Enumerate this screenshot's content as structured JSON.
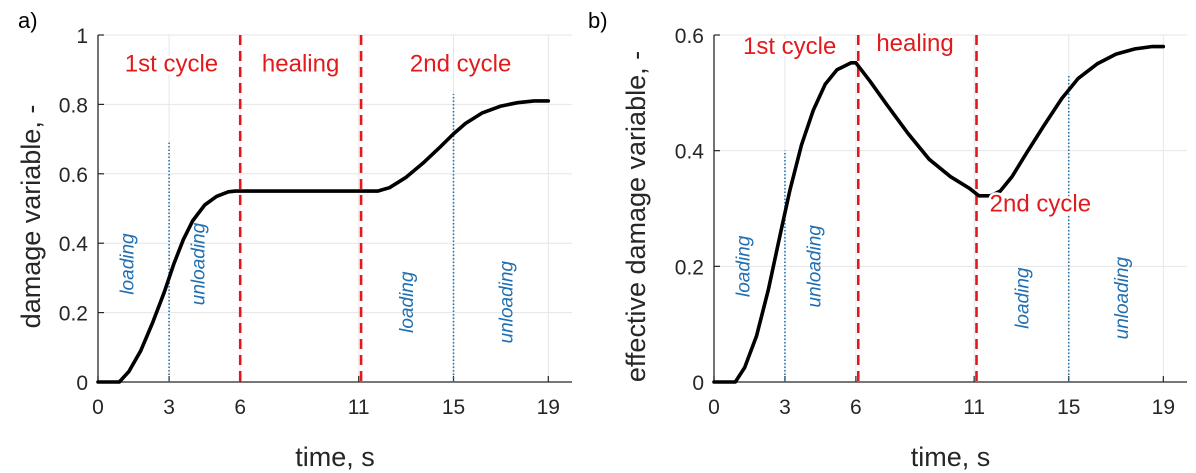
{
  "colors": {
    "curve": "#000000",
    "phase_line": "#e31a1c",
    "phase_text": "#e31a1c",
    "marker_line": "#1f77b4",
    "annotation_text": "#1f6fb2",
    "axis": "#262626",
    "grid": "#e6e6e6"
  },
  "chart_data": [
    {
      "type": "line",
      "panel_label": "a)",
      "xlabel": "time, s",
      "ylabel": "damage variable, -",
      "xlim": [
        0,
        20
      ],
      "ylim": [
        0,
        1
      ],
      "xticks": [
        0,
        3,
        6,
        11,
        15,
        19
      ],
      "yticks": [
        0,
        0.2,
        0.4,
        0.6,
        0.8,
        1
      ],
      "ytick_labels": [
        "0",
        "0.2",
        "0.4",
        "0.6",
        "0.8",
        "1"
      ],
      "grid": true,
      "series": [
        {
          "x": [
            0,
            0.9,
            1.3,
            1.8,
            2.3,
            2.8,
            3.2,
            3.6,
            4.0,
            4.5,
            5.0,
            5.5,
            5.8,
            6.5,
            8,
            10,
            11,
            11.8,
            12.3,
            13,
            13.7,
            14.4,
            15,
            15.5,
            16.2,
            17,
            17.7,
            18.4,
            19
          ],
          "y": [
            0,
            0,
            0.03,
            0.09,
            0.17,
            0.26,
            0.34,
            0.41,
            0.465,
            0.51,
            0.535,
            0.548,
            0.55,
            0.55,
            0.55,
            0.55,
            0.55,
            0.55,
            0.56,
            0.59,
            0.63,
            0.675,
            0.715,
            0.745,
            0.775,
            0.795,
            0.805,
            0.81,
            0.81
          ]
        }
      ],
      "phase_lines": [
        6,
        11.1
      ],
      "marker_lines": [
        {
          "x": 3,
          "y_top": 0.69
        },
        {
          "x": 15,
          "y_top": 0.83
        }
      ],
      "phase_labels": [
        {
          "text": "1st cycle",
          "x": 3.1,
          "y": 0.895
        },
        {
          "text": "healing",
          "x": 8.55,
          "y": 0.895
        },
        {
          "text": "2nd cycle",
          "x": 15.3,
          "y": 0.895
        }
      ],
      "annotations": [
        {
          "text": "loading",
          "x": 1.5,
          "y": 0.34
        },
        {
          "text": "unloading",
          "x": 4.5,
          "y": 0.34
        },
        {
          "text": "loading",
          "x": 13.3,
          "y": 0.23
        },
        {
          "text": "unloading",
          "x": 17.5,
          "y": 0.23
        }
      ]
    },
    {
      "type": "line",
      "panel_label": "b)",
      "xlabel": "time, s",
      "ylabel": "effective damage variable, -",
      "xlim": [
        0,
        20
      ],
      "ylim": [
        0,
        0.6
      ],
      "xticks": [
        0,
        3,
        6,
        11,
        15,
        19
      ],
      "yticks": [
        0,
        0.2,
        0.4,
        0.6
      ],
      "ytick_labels": [
        "0",
        "0.2",
        "0.4",
        "0.6"
      ],
      "grid": true,
      "series": [
        {
          "x": [
            0,
            0.9,
            1.3,
            1.8,
            2.3,
            2.8,
            3.2,
            3.7,
            4.2,
            4.7,
            5.2,
            5.8,
            6.0,
            6.6,
            7.3,
            8.2,
            9.1,
            10.0,
            10.8,
            11.2,
            11.7,
            12.1,
            12.6,
            13.2,
            13.9,
            14.7,
            15.4,
            16.2,
            17.0,
            17.8,
            18.5,
            19
          ],
          "y": [
            0,
            0,
            0.025,
            0.08,
            0.16,
            0.255,
            0.33,
            0.41,
            0.47,
            0.515,
            0.54,
            0.552,
            0.552,
            0.52,
            0.48,
            0.43,
            0.385,
            0.355,
            0.335,
            0.322,
            0.322,
            0.33,
            0.355,
            0.395,
            0.44,
            0.49,
            0.525,
            0.55,
            0.567,
            0.576,
            0.58,
            0.58
          ]
        }
      ],
      "phase_lines": [
        6.1,
        11.1
      ],
      "marker_lines": [
        {
          "x": 3,
          "y_top": 0.4
        },
        {
          "x": 15,
          "y_top": 0.53
        }
      ],
      "phase_labels": [
        {
          "text": "1st cycle",
          "x": 3.2,
          "y": 0.567
        },
        {
          "text": "healing",
          "x": 8.5,
          "y": 0.572
        },
        {
          "text": "2nd cycle",
          "x": 13.8,
          "y": 0.295
        }
      ],
      "annotations": [
        {
          "text": "loading",
          "x": 1.5,
          "y": 0.2
        },
        {
          "text": "unloading",
          "x": 4.5,
          "y": 0.2
        },
        {
          "text": "loading",
          "x": 13.3,
          "y": 0.145
        },
        {
          "text": "unloading",
          "x": 17.5,
          "y": 0.145
        }
      ]
    }
  ]
}
